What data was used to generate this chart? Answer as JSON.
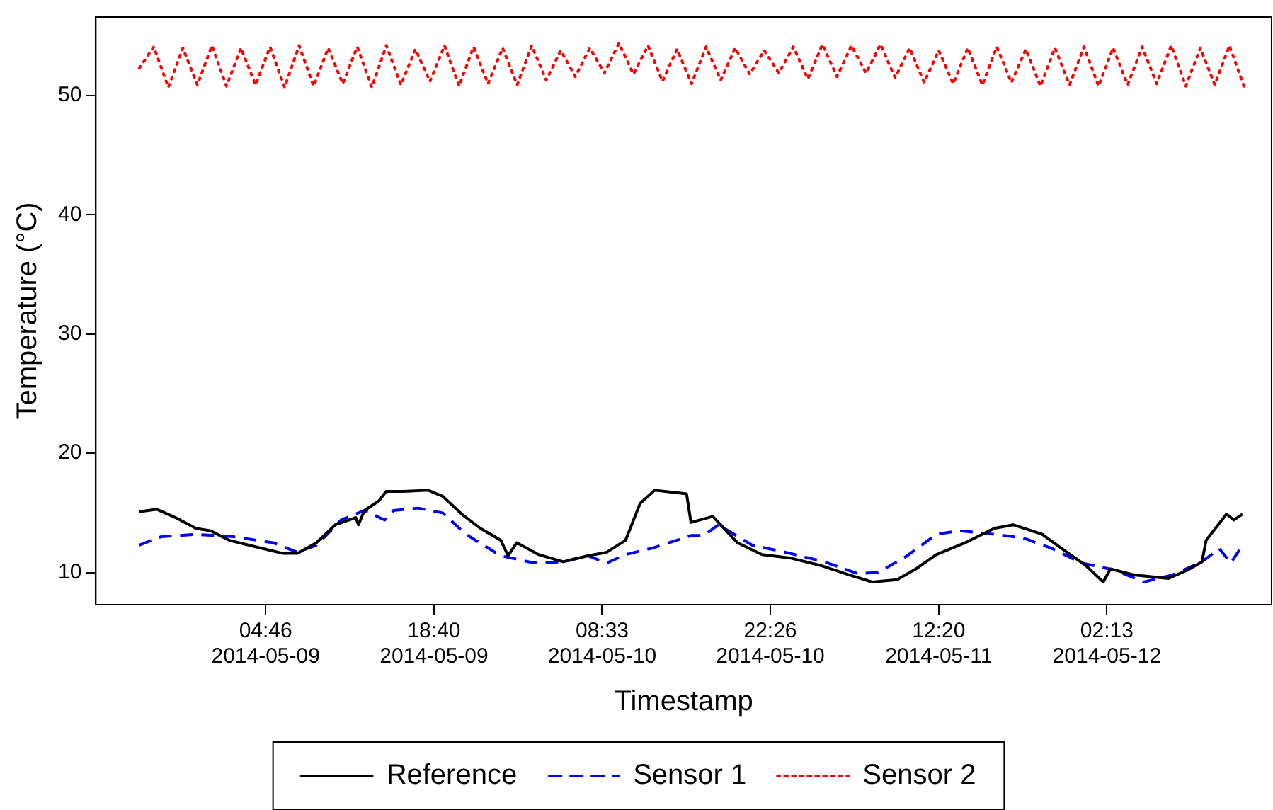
{
  "chart_data": {
    "type": "line",
    "xlabel": "Timestamp",
    "ylabel": "Temperature (°C)",
    "xlim": [
      "2014-05-08T14:45",
      "2014-05-12T15:49"
    ],
    "xticks": [
      {
        "value": "2014-05-09T04:46",
        "label": "04:46\n2014-05-09"
      },
      {
        "value": "2014-05-09T18:40",
        "label": "18:40\n2014-05-09"
      },
      {
        "value": "2014-05-10T08:33",
        "label": "08:33\n2014-05-10"
      },
      {
        "value": "2014-05-10T22:26",
        "label": "22:26\n2014-05-10"
      },
      {
        "value": "2014-05-11T12:20",
        "label": "12:20\n2014-05-11"
      },
      {
        "value": "2014-05-12T02:13",
        "label": "02:13\n2014-05-12"
      }
    ],
    "ylim": [
      7.3,
      56.6
    ],
    "yticks": [
      10,
      20,
      30,
      40,
      50
    ],
    "grid": false,
    "legend": "bottom",
    "marker": "none",
    "series": [
      {
        "name": "Reference",
        "color": "#000000",
        "line_style": "solid",
        "x": [
          "2014-05-08T18:20",
          "2014-05-08T19:47",
          "2014-05-08T21:20",
          "2014-05-08T23:01",
          "2014-05-09T00:13",
          "2014-05-09T01:46",
          "2014-05-09T04:10",
          "2014-05-09T06:12",
          "2014-05-09T07:24",
          "2014-05-09T08:58",
          "2014-05-09T10:31",
          "2014-05-09T12:12",
          "2014-05-09T12:26",
          "2014-05-09T12:55",
          "2014-05-09T14:07",
          "2014-05-09T14:43",
          "2014-05-09T16:09",
          "2014-05-09T18:11",
          "2014-05-09T19:23",
          "2014-05-09T20:57",
          "2014-05-09T22:30",
          "2014-05-10T00:11",
          "2014-05-10T00:47",
          "2014-05-10T01:30",
          "2014-05-10T03:18",
          "2014-05-10T05:20",
          "2014-05-10T07:22",
          "2014-05-10T08:56",
          "2014-05-10T10:29",
          "2014-05-10T11:41",
          "2014-05-10T12:53",
          "2014-05-10T14:41",
          "2014-05-10T15:31",
          "2014-05-10T15:53",
          "2014-05-10T17:41",
          "2014-05-10T19:43",
          "2014-05-10T21:45",
          "2014-05-11T00:09",
          "2014-05-11T02:33",
          "2014-05-11T04:56",
          "2014-05-11T06:51",
          "2014-05-11T08:54",
          "2014-05-11T10:27",
          "2014-05-11T12:08",
          "2014-05-11T14:32",
          "2014-05-11T16:55",
          "2014-05-11T18:29",
          "2014-05-11T20:53",
          "2014-05-11T22:55",
          "2014-05-12T00:28",
          "2014-05-12T01:55",
          "2014-05-12T02:31",
          "2014-05-12T04:26",
          "2014-05-12T07:18",
          "2014-05-12T08:52",
          "2014-05-12T10:04",
          "2014-05-12T10:25",
          "2014-05-12T12:06",
          "2014-05-12T12:42",
          "2014-05-12T13:25"
        ],
        "values": [
          15.1,
          15.3,
          14.6,
          13.7,
          13.5,
          12.7,
          12.1,
          11.6,
          11.6,
          12.5,
          14.0,
          14.6,
          14.0,
          15.2,
          16.0,
          16.8,
          16.8,
          16.9,
          16.4,
          14.9,
          13.7,
          12.7,
          11.4,
          12.5,
          11.5,
          10.9,
          11.4,
          11.7,
          12.7,
          15.8,
          16.9,
          16.7,
          16.6,
          14.2,
          14.7,
          12.5,
          11.5,
          11.2,
          10.6,
          9.8,
          9.2,
          9.4,
          10.3,
          11.5,
          12.5,
          13.7,
          14.0,
          13.2,
          11.7,
          10.6,
          9.2,
          10.3,
          9.8,
          9.5,
          10.2,
          10.9,
          12.7,
          14.9,
          14.4,
          14.9
        ]
      },
      {
        "name": "Sensor 1",
        "color": "#0000ff",
        "line_style": "dashed",
        "x": [
          "2014-05-08T18:20",
          "2014-05-08T20:08",
          "2014-05-08T23:01",
          "2014-05-09T02:08",
          "2014-05-09T05:22",
          "2014-05-09T07:24",
          "2014-05-09T08:58",
          "2014-05-09T11:00",
          "2014-05-09T12:55",
          "2014-05-09T14:36",
          "2014-05-09T15:19",
          "2014-05-09T17:21",
          "2014-05-09T19:23",
          "2014-05-09T21:18",
          "2014-05-10T00:11",
          "2014-05-10T02:56",
          "2014-05-10T05:20",
          "2014-05-10T07:22",
          "2014-05-10T08:56",
          "2014-05-10T10:29",
          "2014-05-10T12:53",
          "2014-05-10T15:53",
          "2014-05-10T16:57",
          "2014-05-10T18:09",
          "2014-05-10T20:55",
          "2014-05-10T23:40",
          "2014-05-11T02:54",
          "2014-05-11T05:40",
          "2014-05-11T07:20",
          "2014-05-11T09:44",
          "2014-05-11T12:08",
          "2014-05-11T14:03",
          "2014-05-11T16:55",
          "2014-05-11T19:19",
          "2014-05-11T21:43",
          "2014-05-12T00:07",
          "2014-05-12T02:52",
          "2014-05-12T05:16",
          "2014-05-12T07:40",
          "2014-05-12T10:04",
          "2014-05-12T11:30",
          "2014-05-12T12:27",
          "2014-05-12T13:18"
        ],
        "values": [
          12.3,
          13.0,
          13.2,
          13.0,
          12.5,
          11.7,
          12.3,
          14.4,
          15.2,
          14.4,
          15.2,
          15.4,
          15.0,
          13.2,
          11.4,
          10.8,
          10.9,
          11.4,
          10.8,
          11.5,
          12.1,
          13.1,
          13.1,
          14.0,
          12.3,
          11.7,
          10.9,
          9.9,
          10.0,
          11.4,
          13.2,
          13.5,
          13.2,
          12.9,
          12.0,
          10.8,
          10.2,
          9.2,
          9.8,
          10.9,
          12.0,
          10.8,
          12.1
        ]
      },
      {
        "name": "Sensor 2",
        "color": "#ff0000",
        "line_style": "dotted",
        "x": [
          "2014-05-08T18:20",
          "2014-05-08T19:32",
          "2014-05-08T20:44",
          "2014-05-08T21:56",
          "2014-05-08T23:08",
          "2014-05-09T00:20",
          "2014-05-09T01:32",
          "2014-05-09T02:44",
          "2014-05-09T03:56",
          "2014-05-09T05:08",
          "2014-05-09T06:20",
          "2014-05-09T07:32",
          "2014-05-09T08:44",
          "2014-05-09T09:56",
          "2014-05-09T11:08",
          "2014-05-09T12:20",
          "2014-05-09T13:32",
          "2014-05-09T14:44",
          "2014-05-09T15:56",
          "2014-05-09T17:08",
          "2014-05-09T18:20",
          "2014-05-09T19:32",
          "2014-05-09T20:44",
          "2014-05-09T21:56",
          "2014-05-09T23:08",
          "2014-05-10T00:20",
          "2014-05-10T01:32",
          "2014-05-10T02:44",
          "2014-05-10T03:56",
          "2014-05-10T05:08",
          "2014-05-10T06:20",
          "2014-05-10T07:32",
          "2014-05-10T08:44",
          "2014-05-10T09:56",
          "2014-05-10T11:08",
          "2014-05-10T12:20",
          "2014-05-10T13:32",
          "2014-05-10T14:44",
          "2014-05-10T15:56",
          "2014-05-10T17:08",
          "2014-05-10T18:20",
          "2014-05-10T19:32",
          "2014-05-10T20:44",
          "2014-05-10T21:56",
          "2014-05-10T23:08",
          "2014-05-11T00:20",
          "2014-05-11T01:32",
          "2014-05-11T02:44",
          "2014-05-11T03:56",
          "2014-05-11T05:08",
          "2014-05-11T06:20",
          "2014-05-11T07:32",
          "2014-05-11T08:44",
          "2014-05-11T09:56",
          "2014-05-11T11:08",
          "2014-05-11T12:20",
          "2014-05-11T13:32",
          "2014-05-11T14:44",
          "2014-05-11T15:56",
          "2014-05-11T17:08",
          "2014-05-11T18:20",
          "2014-05-11T19:32",
          "2014-05-11T20:44",
          "2014-05-11T21:56",
          "2014-05-11T23:08",
          "2014-05-12T00:20",
          "2014-05-12T01:32",
          "2014-05-12T02:44",
          "2014-05-12T03:56",
          "2014-05-12T05:08",
          "2014-05-12T06:20",
          "2014-05-12T07:32",
          "2014-05-12T08:44",
          "2014-05-12T09:56",
          "2014-05-12T11:08",
          "2014-05-12T12:20",
          "2014-05-12T13:32"
        ],
        "values": [
          52.3,
          54.1,
          50.7,
          54.0,
          50.9,
          54.2,
          50.8,
          54.0,
          50.9,
          54.1,
          50.7,
          54.2,
          50.8,
          54.0,
          51.0,
          54.1,
          50.7,
          54.2,
          50.9,
          53.9,
          51.2,
          54.2,
          50.8,
          54.1,
          51.0,
          54.0,
          50.9,
          54.2,
          51.3,
          53.8,
          51.6,
          54.0,
          51.9,
          54.4,
          51.8,
          54.2,
          51.2,
          53.9,
          51.0,
          54.1,
          51.3,
          54.0,
          51.8,
          53.8,
          51.9,
          54.1,
          51.4,
          54.3,
          51.6,
          54.2,
          51.9,
          54.3,
          51.5,
          54.0,
          51.1,
          53.8,
          51.0,
          54.0,
          50.9,
          54.1,
          51.1,
          53.9,
          50.8,
          54.0,
          50.9,
          54.1,
          50.8,
          54.0,
          50.9,
          54.1,
          51.0,
          54.2,
          50.8,
          54.0,
          50.9,
          54.2,
          50.8
        ]
      }
    ]
  }
}
